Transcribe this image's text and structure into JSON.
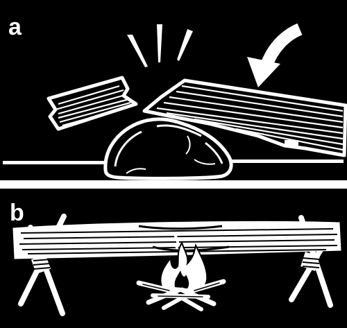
{
  "panels": [
    {
      "id": "a",
      "label": "a",
      "description_icon": "breaking-log-over-rock"
    },
    {
      "id": "b",
      "label": "b",
      "description_icon": "log-over-fire-on-crossed-supports"
    }
  ],
  "colors": {
    "background": "#000000",
    "ink": "#ffffff",
    "divider": "#ffffff"
  }
}
